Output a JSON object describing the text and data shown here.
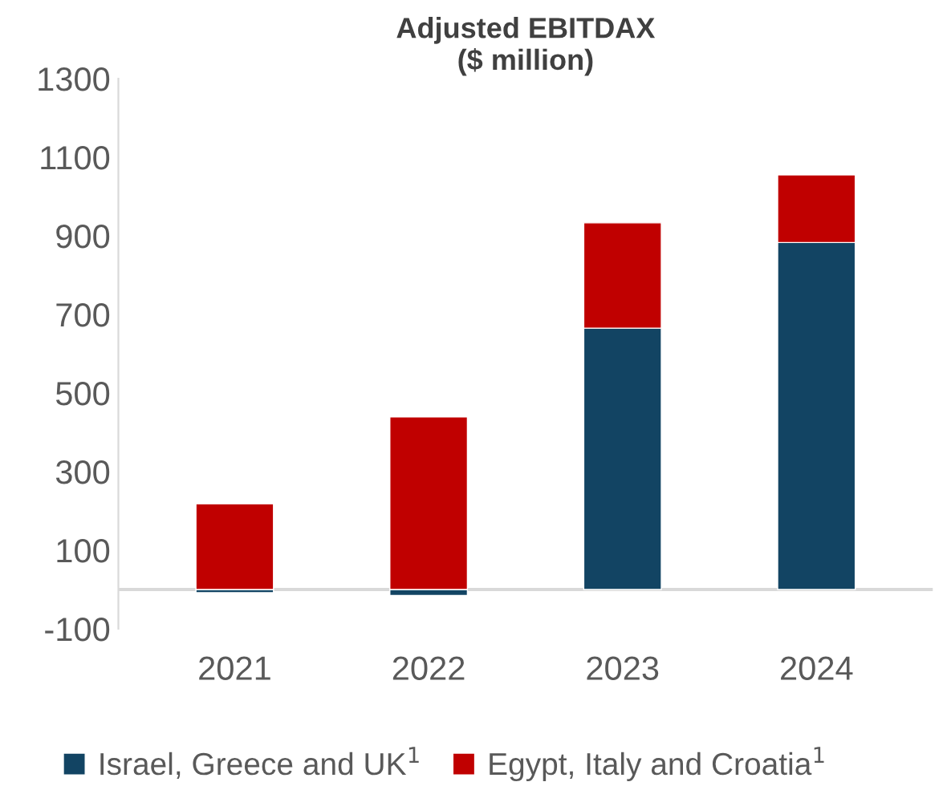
{
  "chart_data": {
    "type": "bar",
    "title": "Adjusted EBITDAX\n($ million)",
    "stacked": true,
    "categories": [
      "2021",
      "2022",
      "2023",
      "2024"
    ],
    "series": [
      {
        "name": "Israel, Greece and UK$^{1}$",
        "color": "#124463",
        "values": [
          -8,
          -15,
          665,
          883
        ]
      },
      {
        "name": "Egypt, Italy and Croatia$^{1}$",
        "color": "#c00000",
        "values": [
          218,
          439,
          268,
          172
        ]
      }
    ],
    "ylim": [
      -100,
      1300
    ],
    "yticks": [
      -100,
      100,
      300,
      500,
      700,
      900,
      1100,
      1300
    ],
    "grid": false,
    "legend": "bottom"
  }
}
